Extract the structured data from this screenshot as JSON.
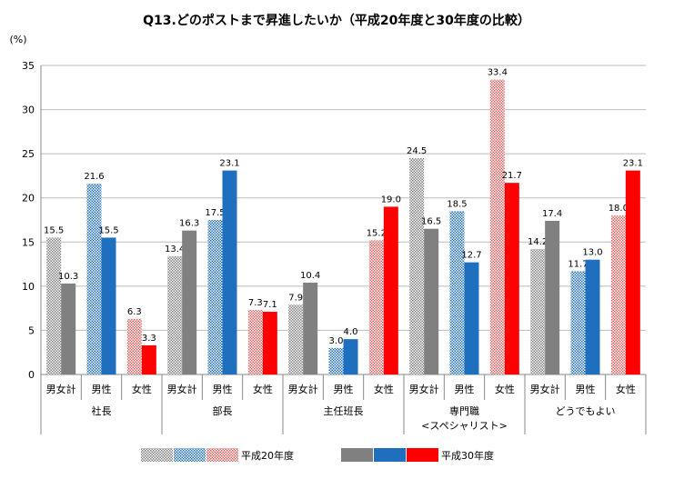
{
  "chart_data": {
    "type": "bar",
    "title": "Q13.どのポストまで昇進したいか（平成20年度と30年度の比較）",
    "ylabel": "(%)",
    "ylim": [
      0,
      35
    ],
    "yticks": [
      0,
      5,
      10,
      15,
      20,
      25,
      30,
      35
    ],
    "grid": true,
    "legend_position": "bottom",
    "groups": [
      {
        "label": "社長",
        "label2": ""
      },
      {
        "label": "部長",
        "label2": ""
      },
      {
        "label": "主任班長",
        "label2": ""
      },
      {
        "label": "専門職",
        "label2": "<スペシャリスト>"
      },
      {
        "label": "どうでもよい",
        "label2": ""
      }
    ],
    "subcategories": [
      "男女計",
      "男性",
      "女性"
    ],
    "subcategory_colors": [
      "#808080",
      "#1f6fbf",
      "#ff0000"
    ],
    "series": [
      {
        "name": "平成20年度",
        "style": "hatched",
        "values": [
          [
            15.5,
            21.6,
            6.3
          ],
          [
            13.4,
            17.5,
            7.3
          ],
          [
            7.9,
            3.0,
            15.2
          ],
          [
            24.5,
            18.5,
            33.4
          ],
          [
            14.2,
            11.7,
            18.0
          ]
        ]
      },
      {
        "name": "平成30年度",
        "style": "solid",
        "values": [
          [
            10.3,
            15.5,
            3.3
          ],
          [
            16.3,
            23.1,
            7.1
          ],
          [
            10.4,
            4.0,
            19.0
          ],
          [
            16.5,
            12.7,
            21.7
          ],
          [
            17.4,
            13.0,
            23.1
          ]
        ]
      }
    ]
  }
}
